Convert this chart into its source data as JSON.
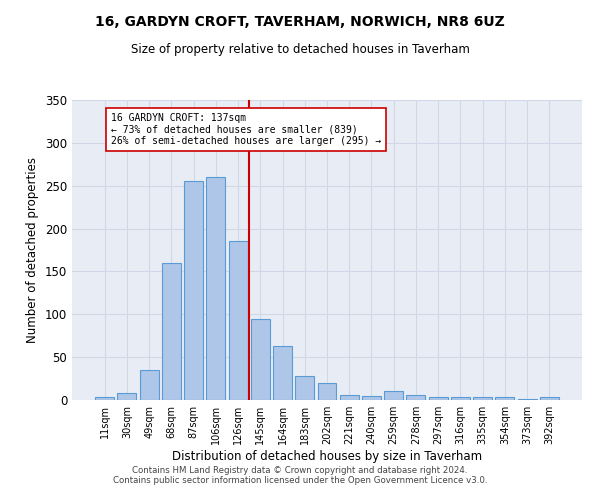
{
  "title1": "16, GARDYN CROFT, TAVERHAM, NORWICH, NR8 6UZ",
  "title2": "Size of property relative to detached houses in Taverham",
  "xlabel": "Distribution of detached houses by size in Taverham",
  "ylabel": "Number of detached properties",
  "categories": [
    "11sqm",
    "30sqm",
    "49sqm",
    "68sqm",
    "87sqm",
    "106sqm",
    "126sqm",
    "145sqm",
    "164sqm",
    "183sqm",
    "202sqm",
    "221sqm",
    "240sqm",
    "259sqm",
    "278sqm",
    "297sqm",
    "316sqm",
    "335sqm",
    "354sqm",
    "373sqm",
    "392sqm"
  ],
  "bar_heights": [
    3,
    8,
    35,
    160,
    255,
    260,
    185,
    95,
    63,
    28,
    20,
    6,
    5,
    10,
    6,
    4,
    3,
    3,
    4,
    1,
    4
  ],
  "bar_color": "#aec6e8",
  "bar_edge_color": "#5b9bd5",
  "annotation_line1": "16 GARDYN CROFT: 137sqm",
  "annotation_line2": "← 73% of detached houses are smaller (839)",
  "annotation_line3": "26% of semi-detached houses are larger (295) →",
  "vline_color": "#cc0000",
  "annotation_box_color": "#ffffff",
  "annotation_box_edge": "#cc0000",
  "grid_color": "#d0d8e8",
  "background_color": "#e8edf5",
  "footer1": "Contains HM Land Registry data © Crown copyright and database right 2024.",
  "footer2": "Contains public sector information licensed under the Open Government Licence v3.0.",
  "ylim": [
    0,
    350
  ],
  "yticks": [
    0,
    50,
    100,
    150,
    200,
    250,
    300,
    350
  ]
}
